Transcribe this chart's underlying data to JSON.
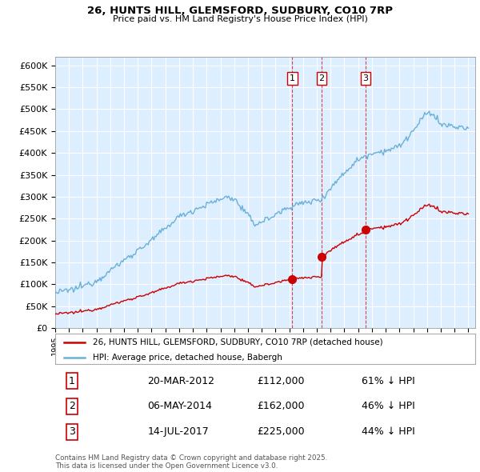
{
  "title1": "26, HUNTS HILL, GLEMSFORD, SUDBURY, CO10 7RP",
  "title2": "Price paid vs. HM Land Registry's House Price Index (HPI)",
  "ylim": [
    0,
    620000
  ],
  "yticks": [
    0,
    50000,
    100000,
    150000,
    200000,
    250000,
    300000,
    350000,
    400000,
    450000,
    500000,
    550000,
    600000
  ],
  "ytick_labels": [
    "£0",
    "£50K",
    "£100K",
    "£150K",
    "£200K",
    "£250K",
    "£300K",
    "£350K",
    "£400K",
    "£450K",
    "£500K",
    "£550K",
    "£600K"
  ],
  "hpi_color": "#6ab0d8",
  "price_color": "#cc0000",
  "sale_marker_color": "#cc0000",
  "sale_years_dec": [
    2012.21,
    2014.34,
    2017.54
  ],
  "sale_prices": [
    112000,
    162000,
    225000
  ],
  "sale_labels": [
    "1",
    "2",
    "3"
  ],
  "sale_label_dates": [
    "20-MAR-2012",
    "06-MAY-2014",
    "14-JUL-2017"
  ],
  "sale_price_labels": [
    "£112,000",
    "£162,000",
    "£225,000"
  ],
  "sale_pct_labels": [
    "61% ↓ HPI",
    "46% ↓ HPI",
    "44% ↓ HPI"
  ],
  "legend_line1": "26, HUNTS HILL, GLEMSFORD, SUDBURY, CO10 7RP (detached house)",
  "legend_line2": "HPI: Average price, detached house, Babergh",
  "footnote": "Contains HM Land Registry data © Crown copyright and database right 2025.\nThis data is licensed under the Open Government Licence v3.0.",
  "plot_bg_color": "#ddeeff",
  "fig_bg_color": "#ffffff",
  "grid_color": "#ffffff"
}
